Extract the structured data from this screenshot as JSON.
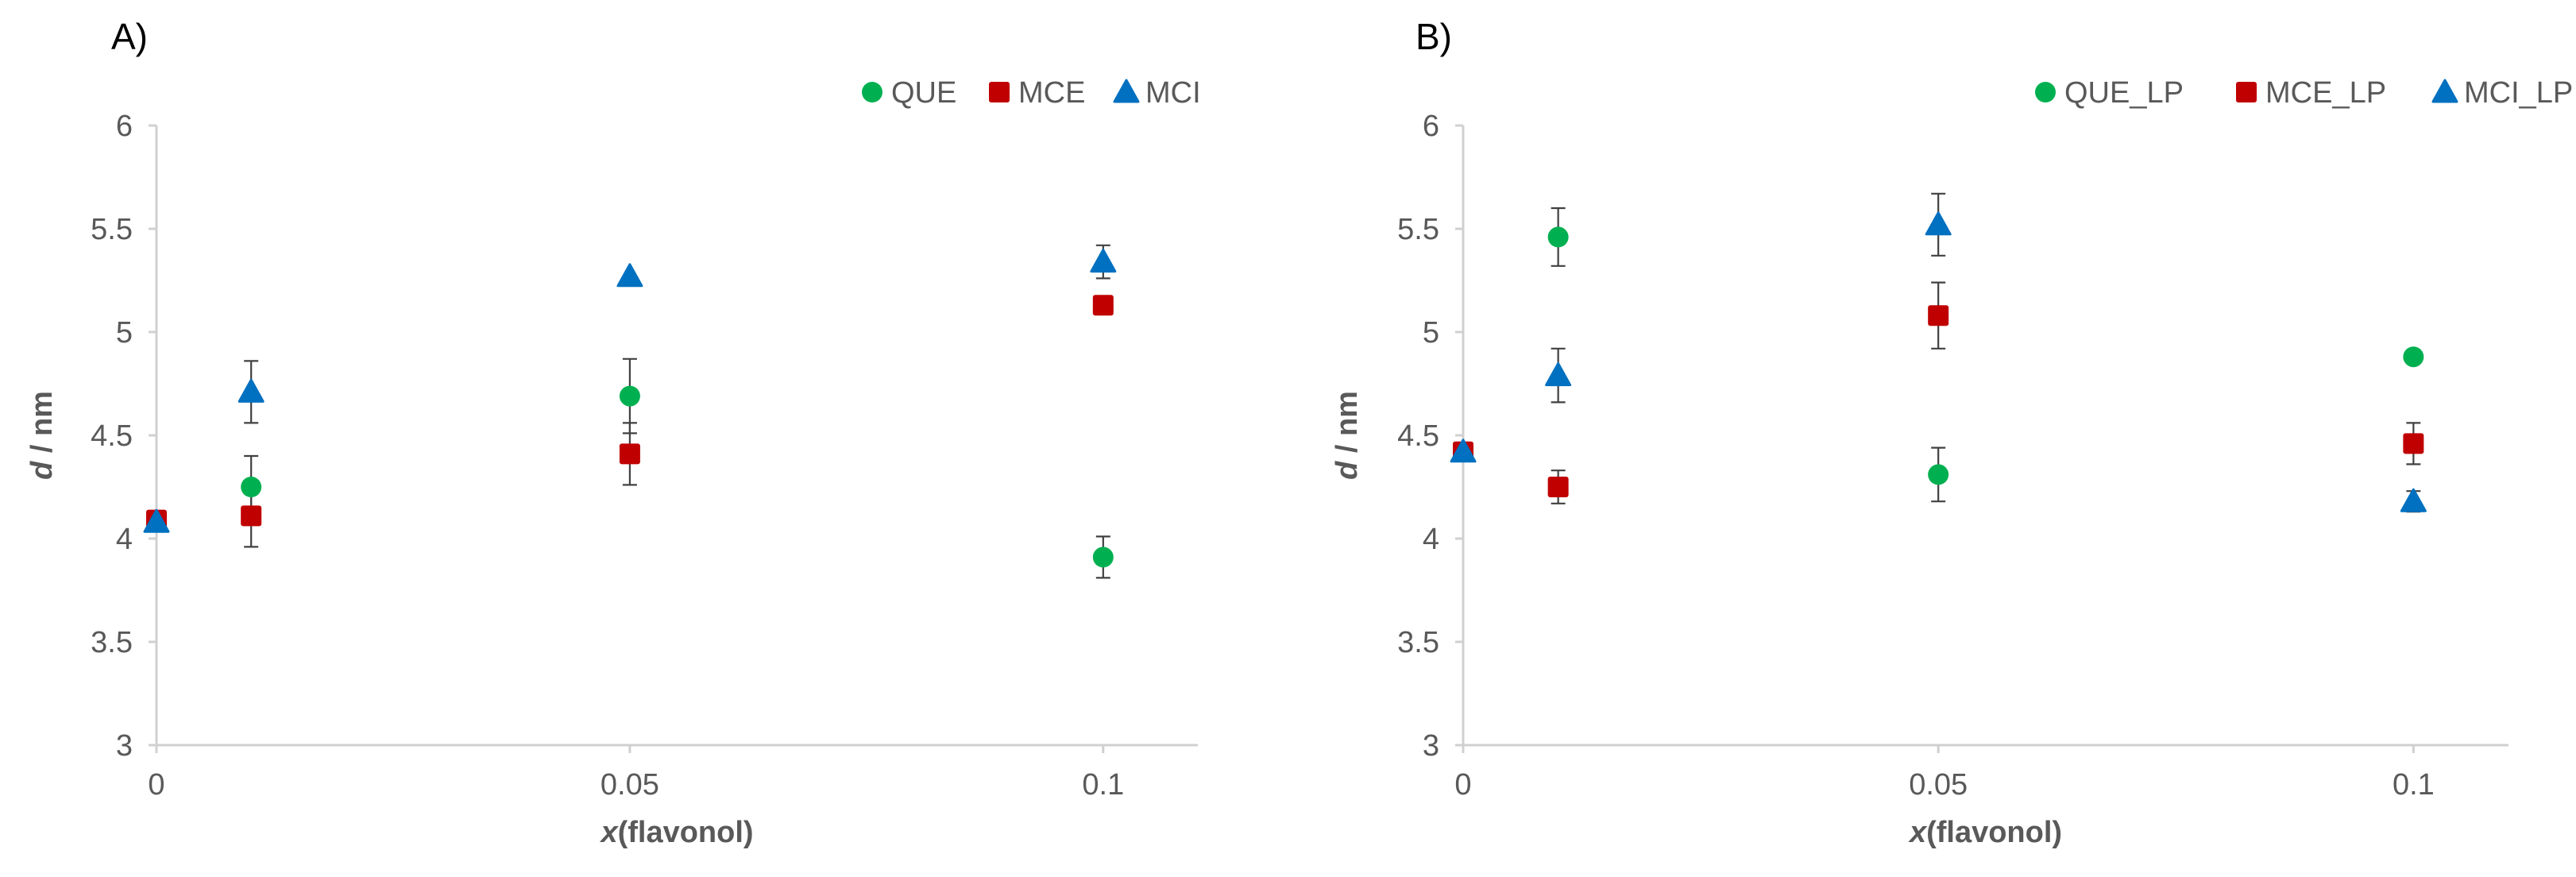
{
  "colors": {
    "QUE": "#00b050",
    "MCE": "#c00000",
    "MCI": "#0070c0",
    "axis": "#d0d0d0",
    "text": "#595959"
  },
  "chart_data": [
    {
      "type": "scatter",
      "panel_label": "A)",
      "xlabel_italic": "x",
      "xlabel_rest": "(flavonol)",
      "ylabel_italic": "d",
      "ylabel_rest": " / nm",
      "xlim": [
        0,
        0.11
      ],
      "ylim": [
        3,
        6
      ],
      "xticks": [
        0,
        0.05,
        0.1
      ],
      "xtick_labels": [
        "0",
        "0.05",
        "0.1"
      ],
      "yticks": [
        3,
        3.5,
        4,
        4.5,
        5,
        5.5,
        6
      ],
      "ytick_labels": [
        "3",
        "3.5",
        "4",
        "4.5",
        "5",
        "5.5",
        "6"
      ],
      "legend_position": "top-right",
      "series": [
        {
          "name": "QUE",
          "marker": "circle",
          "color_key": "QUE",
          "points": [
            {
              "x": 0.01,
              "y": 4.25,
              "err": 0.15
            },
            {
              "x": 0.05,
              "y": 4.69,
              "err": 0.18
            },
            {
              "x": 0.1,
              "y": 3.91,
              "err": 0.1
            }
          ]
        },
        {
          "name": "MCE",
          "marker": "square",
          "color_key": "MCE",
          "points": [
            {
              "x": 0,
              "y": 4.09,
              "err": 0.02
            },
            {
              "x": 0.01,
              "y": 4.11,
              "err": 0.15
            },
            {
              "x": 0.05,
              "y": 4.41,
              "err": 0.15
            },
            {
              "x": 0.1,
              "y": 5.13,
              "err": 0.03
            }
          ]
        },
        {
          "name": "MCI",
          "marker": "triangle",
          "color_key": "MCI",
          "points": [
            {
              "x": 0,
              "y": 4.08,
              "err": 0.02
            },
            {
              "x": 0.01,
              "y": 4.71,
              "err": 0.15
            },
            {
              "x": 0.05,
              "y": 5.27,
              "err": 0.03
            },
            {
              "x": 0.1,
              "y": 5.34,
              "err": 0.08
            }
          ]
        }
      ]
    },
    {
      "type": "scatter",
      "panel_label": "B)",
      "xlabel_italic": "x",
      "xlabel_rest": "(flavonol)",
      "ylabel_italic": "d",
      "ylabel_rest": " / nm",
      "xlim": [
        0,
        0.11
      ],
      "ylim": [
        3,
        6
      ],
      "xticks": [
        0,
        0.05,
        0.1
      ],
      "xtick_labels": [
        "0",
        "0.05",
        "0.1"
      ],
      "yticks": [
        3,
        3.5,
        4,
        4.5,
        5,
        5.5,
        6
      ],
      "ytick_labels": [
        "3",
        "3.5",
        "4",
        "4.5",
        "5",
        "5.5",
        "6"
      ],
      "legend_position": "top-right",
      "series": [
        {
          "name": "QUE_LP",
          "marker": "circle",
          "color_key": "QUE",
          "points": [
            {
              "x": 0,
              "y": 4.42,
              "err": 0.02
            },
            {
              "x": 0.01,
              "y": 5.46,
              "err": 0.14
            },
            {
              "x": 0.05,
              "y": 4.31,
              "err": 0.13
            },
            {
              "x": 0.1,
              "y": 4.88,
              "err": 0.02
            }
          ]
        },
        {
          "name": "MCE_LP",
          "marker": "square",
          "color_key": "MCE",
          "points": [
            {
              "x": 0,
              "y": 4.42,
              "err": 0.02
            },
            {
              "x": 0.01,
              "y": 4.25,
              "err": 0.08
            },
            {
              "x": 0.05,
              "y": 5.08,
              "err": 0.16
            },
            {
              "x": 0.1,
              "y": 4.46,
              "err": 0.1
            }
          ]
        },
        {
          "name": "MCI_LP",
          "marker": "triangle",
          "color_key": "MCI",
          "points": [
            {
              "x": 0,
              "y": 4.42,
              "err": 0.02
            },
            {
              "x": 0.01,
              "y": 4.79,
              "err": 0.13
            },
            {
              "x": 0.05,
              "y": 5.52,
              "err": 0.15
            },
            {
              "x": 0.1,
              "y": 4.18,
              "err": 0.05
            }
          ]
        }
      ]
    }
  ]
}
